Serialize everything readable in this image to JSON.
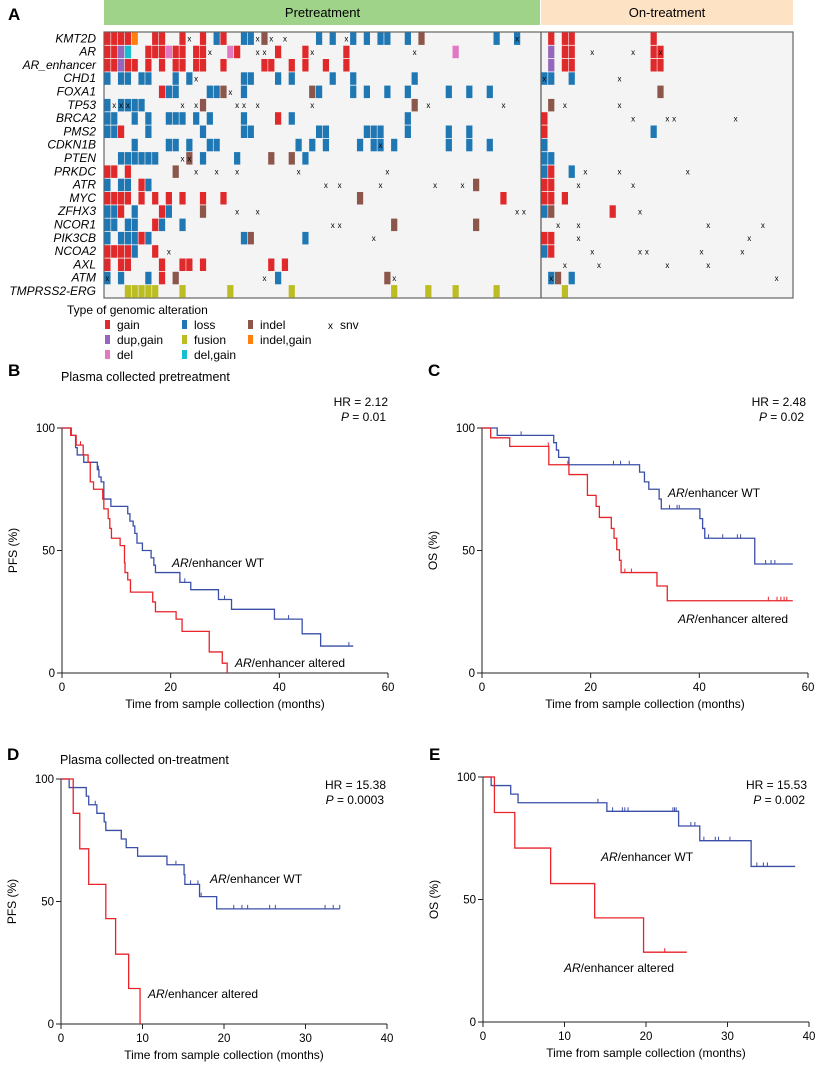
{
  "panel_a": {
    "letter": "A",
    "groups": [
      "Pretreatment",
      "On-treatment"
    ],
    "group_colors": [
      "#9fd38a",
      "#fde3c4"
    ],
    "legend_title": "Type of genomic alteration",
    "legend": [
      {
        "key": "gain",
        "label": "gain",
        "color": "#e0292b"
      },
      {
        "key": "loss",
        "label": "loss",
        "color": "#1f78b4"
      },
      {
        "key": "indel",
        "label": "indel",
        "color": "#8c564b"
      },
      {
        "key": "snv",
        "label": "snv",
        "color": "#000000"
      },
      {
        "key": "dup_gain",
        "label": "dup,gain",
        "color": "#9467bd"
      },
      {
        "key": "fusion",
        "label": "fusion",
        "color": "#bcbd22"
      },
      {
        "key": "indel_gain",
        "label": "indel,gain",
        "color": "#ff7f0e"
      },
      {
        "key": "del",
        "label": "del",
        "color": "#e377c2"
      },
      {
        "key": "del_gain",
        "label": "del,gain",
        "color": "#17becf"
      }
    ],
    "snv_symbol": "x",
    "genes": [
      {
        "name": "KMT2D",
        "pre": {
          "gain": "0-3,7,8,11,14,17",
          "indel_gain": "4",
          "loss": "16,20,21,31,33,36,38,40,41,44,57,60",
          "indel": "23,46",
          "snv": "12,22,24,26,35,60"
        },
        "on": {
          "gain": "1,3,4,16"
        }
      },
      {
        "name": "AR",
        "pre": {
          "gain": "0,1,6-8,10,11,13,14,19,25,29,35",
          "dup_gain": "2",
          "del_gain": "3",
          "del": "9,18,51",
          "snv": "15,22,23,30,45"
        },
        "on": {
          "dup_gain": "1",
          "gain": "3,4,16,17",
          "snv": "7,13,17"
        }
      },
      {
        "name": "AR_enhancer",
        "pre": {
          "gain": "0,1,3,4,6,8,10,11,13,14,17,23,24,27,29,32,35",
          "dup_gain": "2"
        },
        "on": {
          "dup_gain": "1",
          "gain": "3,4,16,17"
        }
      },
      {
        "name": "CHD1",
        "pre": {
          "loss": "0,2,3,5,6,10,12,20,21,25,27,33,36,45",
          "snv": "13"
        },
        "on": {
          "loss": "0,1,4",
          "snv": "0,11"
        }
      },
      {
        "name": "FOXA1",
        "pre": {
          "gain": "8",
          "loss": "9,10,15,16,20,31,36,38,41,44,50,53,56",
          "indel": "17,30",
          "snv": "18"
        },
        "on": {
          "indel": "17"
        }
      },
      {
        "name": "TP53",
        "pre": {
          "loss": "0,2-5",
          "indel": "14,45",
          "snv": "1,2,3,11,13,19,20,22,30,47,58"
        },
        "on": {
          "indel": "1",
          "snv": "3,11"
        }
      },
      {
        "name": "BRCA2",
        "pre": {
          "loss": "0,1,4,6,9-11,13,15,20,27,44",
          "gain": "25"
        },
        "on": {
          "gain": "0",
          "snv": "13,18,19,28"
        }
      },
      {
        "name": "PMS2",
        "pre": {
          "loss": "0,1,6,14,20,21,31,32,38-40,44,50,53",
          "gain": "2"
        },
        "on": {
          "gain": "0",
          "loss": "16"
        }
      },
      {
        "name": "CDKN1B",
        "pre": {
          "loss": "4,9,10,12,15,16,28,30,32,37,39,40,42,50,53,56",
          "snv": "40"
        },
        "on": {
          "loss": "0"
        }
      },
      {
        "name": "PTEN",
        "pre": {
          "loss": "2-7,14,19,29",
          "indel": "12,24,27",
          "snv": "11,12"
        },
        "on": {
          "loss": "0,1"
        }
      },
      {
        "name": "PRKDC",
        "pre": {
          "gain": "0,1,3",
          "indel": "10",
          "snv": "13,16,19,28,41"
        },
        "on": {
          "loss": "0,4",
          "gain": "1",
          "snv": "6,11,21"
        }
      },
      {
        "name": "ATR",
        "pre": {
          "loss": "0,2,3,6",
          "gain": "5",
          "indel": "54",
          "snv": "32,34,40,48,52"
        },
        "on": {
          "gain": "0,1",
          "snv": "5,13"
        }
      },
      {
        "name": "MYC",
        "pre": {
          "gain": "0-3,5,7,9,11,14,17,58",
          "indel": "37"
        },
        "on": {
          "gain": "0,1,3"
        }
      },
      {
        "name": "ZFHX3",
        "pre": {
          "loss": "0,1,4,9",
          "gain": "2,8",
          "indel": "14",
          "snv": "19,22,60,61"
        },
        "on": {
          "loss": "0",
          "indel": "1",
          "gain": "10",
          "snv": "14"
        }
      },
      {
        "name": "NCOR1",
        "pre": {
          "loss": "0,1,3,4,8,11",
          "gain": "7",
          "indel": "42,54",
          "snv": "33,34"
        },
        "on": {
          "snv": "2,5,24,32"
        }
      },
      {
        "name": "PIK3CB",
        "pre": {
          "loss": "0,2-4,6,20,29",
          "gain": "5",
          "indel": "21",
          "snv": "39"
        },
        "on": {
          "gain": "0,1",
          "snv": "5,30"
        }
      },
      {
        "name": "NCOA2",
        "pre": {
          "gain": "0-3,7",
          "loss": "4",
          "snv": "9"
        },
        "on": {
          "loss": "0",
          "gain": "1",
          "snv": "7,14,15,23,29"
        }
      },
      {
        "name": "AXL",
        "pre": {
          "gain": "0,2,3,8,11,12,14,24,26"
        },
        "on": {
          "snv": "3,8,18,24"
        }
      },
      {
        "name": "ATM",
        "pre": {
          "loss": "0,2,6,25",
          "gain": "8",
          "indel": "10,41",
          "snv": "0,23,42"
        },
        "on": {
          "loss": "1,4",
          "indel": "2",
          "snv": "1,34"
        }
      },
      {
        "name": "TMPRSS2-ERG",
        "pre": {
          "fusion": "3-7,11,18,27,42,47,51,57"
        },
        "on": {
          "fusion": "3"
        }
      }
    ]
  },
  "chart_data": [
    {
      "panel": "B",
      "type": "line",
      "subtitle": "Plasma collected pretreatment",
      "ylabel": "PFS (%)",
      "xlabel": "Time from sample collection (months)",
      "xlim": [
        0,
        60
      ],
      "ylim": [
        0,
        100
      ],
      "xticks": [
        0,
        20,
        40,
        60
      ],
      "yticks": [
        0,
        50,
        100
      ],
      "hr_text": "HR = 2.12",
      "p_symbol": "P",
      "p_text": " = 0.01",
      "series": [
        {
          "name_gene": "AR",
          "name_rest": "/enhancer WT",
          "color": "#3a4fa8",
          "steps": [
            [
              0,
              100
            ],
            [
              1.7,
              97
            ],
            [
              2.5,
              92
            ],
            [
              2.8,
              89
            ],
            [
              4.0,
              86
            ],
            [
              6.5,
              83
            ],
            [
              6.8,
              80
            ],
            [
              7.2,
              78
            ],
            [
              7.7,
              71
            ],
            [
              9.0,
              68
            ],
            [
              12.1,
              65
            ],
            [
              12.5,
              62
            ],
            [
              13.1,
              60
            ],
            [
              13.4,
              57
            ],
            [
              13.8,
              53
            ],
            [
              14.8,
              50
            ],
            [
              16.4,
              47
            ],
            [
              16.9,
              44
            ],
            [
              17.2,
              41
            ],
            [
              21.7,
              37
            ],
            [
              23.7,
              34
            ],
            [
              28.8,
              30
            ],
            [
              31.2,
              26
            ],
            [
              39.1,
              22
            ],
            [
              44.2,
              16
            ],
            [
              47.6,
              11
            ]
          ],
          "end": 53.6,
          "censors": [
            6.7,
            21.7,
            22.6,
            29.9,
            41.7,
            52.8
          ]
        },
        {
          "name_gene": "AR",
          "name_rest": "/enhancer altered",
          "color": "#e8232a",
          "steps": [
            [
              0,
              100
            ],
            [
              1.6,
              97
            ],
            [
              2.6,
              93
            ],
            [
              3.9,
              89
            ],
            [
              4.8,
              86
            ],
            [
              5.2,
              78
            ],
            [
              5.8,
              75
            ],
            [
              7.5,
              71
            ],
            [
              7.7,
              67
            ],
            [
              8.5,
              63
            ],
            [
              8.8,
              59
            ],
            [
              9.1,
              55
            ],
            [
              10.7,
              52
            ],
            [
              11.5,
              45
            ],
            [
              11.6,
              41
            ],
            [
              12.1,
              38
            ],
            [
              12.6,
              33
            ],
            [
              16.7,
              29
            ],
            [
              17.2,
              25
            ],
            [
              21.0,
              22
            ],
            [
              22.1,
              17
            ],
            [
              27.1,
              8.6
            ],
            [
              29.5,
              4
            ],
            [
              30.4,
              0
            ]
          ],
          "end": 30.4,
          "censors": [
            3.4
          ]
        }
      ]
    },
    {
      "panel": "C",
      "type": "line",
      "subtitle": "",
      "ylabel": "OS (%)",
      "xlabel": "Time from sample collection (months)",
      "xlim": [
        0,
        60
      ],
      "ylim": [
        0,
        100
      ],
      "xticks": [
        0,
        20,
        40,
        60
      ],
      "yticks": [
        0,
        50,
        100
      ],
      "hr_text": "HR = 2.48",
      "p_symbol": "P",
      "p_text": " = 0.02",
      "series": [
        {
          "name_gene": "AR",
          "name_rest": "/enhancer WT",
          "color": "#3a4fa8",
          "steps": [
            [
              0,
              100
            ],
            [
              2.8,
              97
            ],
            [
              13.2,
              94
            ],
            [
              13.7,
              91
            ],
            [
              14.1,
              88
            ],
            [
              16.0,
              85
            ],
            [
              29.0,
              82
            ],
            [
              29.9,
              78
            ],
            [
              30.7,
              75
            ],
            [
              32.6,
              71
            ],
            [
              33.0,
              67
            ],
            [
              40.1,
              63
            ],
            [
              40.6,
              59
            ],
            [
              41.0,
              55
            ],
            [
              50.2,
              44.5
            ]
          ],
          "end": 57.2,
          "censors": [
            7.2,
            24.2,
            25.5,
            27.1,
            34.5,
            35.9,
            36.3,
            41.7,
            44.3,
            47.0,
            47.6,
            52.2,
            53.2,
            53.9
          ]
        },
        {
          "name_gene": "AR",
          "name_rest": "/enhancer altered",
          "color": "#e8232a",
          "steps": [
            [
              0,
              100
            ],
            [
              1.6,
              96
            ],
            [
              5.1,
              92.5
            ],
            [
              12.3,
              85
            ],
            [
              16.0,
              81
            ],
            [
              19.4,
              72.5
            ],
            [
              21.0,
              68
            ],
            [
              21.6,
              63.5
            ],
            [
              23.8,
              59
            ],
            [
              24.3,
              55
            ],
            [
              24.8,
              50.3
            ],
            [
              25.3,
              46
            ],
            [
              25.6,
              41
            ],
            [
              32.2,
              35.5
            ],
            [
              34.1,
              29.5
            ]
          ],
          "end": 57.2,
          "censors": [
            12.2,
            15.8,
            26.3,
            27.5,
            52.7,
            54.3,
            55.0,
            55.6,
            56.1
          ]
        }
      ]
    },
    {
      "panel": "D",
      "type": "line",
      "subtitle": "Plasma collected on-treatment",
      "ylabel": "PFS (%)",
      "xlabel": "Time from sample collection (months)",
      "xlim": [
        0,
        40
      ],
      "ylim": [
        0,
        100
      ],
      "xticks": [
        0,
        10,
        20,
        30,
        40
      ],
      "yticks": [
        0,
        50,
        100
      ],
      "hr_text": "HR = 15.38",
      "p_symbol": "P",
      "p_text": " = 0.0003",
      "series": [
        {
          "name_gene": "AR",
          "name_rest": "/enhancer WT",
          "color": "#3a4fa8",
          "steps": [
            [
              0,
              100
            ],
            [
              1.0,
              96.5
            ],
            [
              3.1,
              93
            ],
            [
              3.4,
              89.5
            ],
            [
              4.4,
              86
            ],
            [
              5.3,
              82.5
            ],
            [
              5.5,
              79
            ],
            [
              7.4,
              75.5
            ],
            [
              8.0,
              72
            ],
            [
              9.4,
              68.5
            ],
            [
              13.0,
              65
            ],
            [
              15.1,
              61
            ],
            [
              15.2,
              57
            ],
            [
              17.0,
              52
            ],
            [
              19.1,
              47
            ]
          ],
          "end": 34.2,
          "censors": [
            4.2,
            14.1,
            15.9,
            16.8,
            17.2,
            21.2,
            22.2,
            22.9,
            25.6,
            26.3,
            32.4,
            33.4,
            34.2
          ]
        },
        {
          "name_gene": "AR",
          "name_rest": "/enhancer altered",
          "color": "#e8232a",
          "steps": [
            [
              0,
              100
            ],
            [
              1.5,
              86
            ],
            [
              2.3,
              71.5
            ],
            [
              3.4,
              57
            ],
            [
              5.5,
              43
            ],
            [
              6.7,
              28.5
            ],
            [
              8.3,
              14.5
            ],
            [
              9.7,
              0
            ]
          ],
          "end": 9.7,
          "censors": []
        }
      ]
    },
    {
      "panel": "E",
      "type": "line",
      "subtitle": "",
      "ylabel": "OS (%)",
      "xlabel": "Time from sample collection (months)",
      "xlim": [
        0,
        40
      ],
      "ylim": [
        0,
        100
      ],
      "xticks": [
        0,
        10,
        20,
        30,
        40
      ],
      "yticks": [
        0,
        50,
        100
      ],
      "hr_text": "HR = 15.53",
      "p_symbol": "P",
      "p_text": " = 0.002",
      "series": [
        {
          "name_gene": "AR",
          "name_rest": "/enhancer WT",
          "color": "#3a4fa8",
          "steps": [
            [
              0,
              100
            ],
            [
              1.0,
              96.5
            ],
            [
              3.4,
              93
            ],
            [
              4.3,
              89.5
            ],
            [
              15.2,
              86
            ],
            [
              24.0,
              80
            ],
            [
              26.6,
              74
            ],
            [
              32.9,
              63.5
            ]
          ],
          "end": 38.3,
          "censors": [
            14.1,
            15.9,
            17.1,
            17.4,
            17.8,
            23.3,
            23.5,
            23.7,
            25.5,
            26.0,
            27.1,
            28.5,
            28.9,
            30.3,
            33.6,
            34.4,
            34.9
          ]
        },
        {
          "name_gene": "AR",
          "name_rest": "/enhancer altered",
          "color": "#e8232a",
          "steps": [
            [
              0,
              100
            ],
            [
              1.4,
              85.5
            ],
            [
              3.9,
              71
            ],
            [
              8.3,
              56.5
            ],
            [
              13.7,
              42.5
            ],
            [
              19.7,
              28.5
            ]
          ],
          "end": 25.0,
          "censors": [
            22.3
          ]
        }
      ]
    }
  ]
}
